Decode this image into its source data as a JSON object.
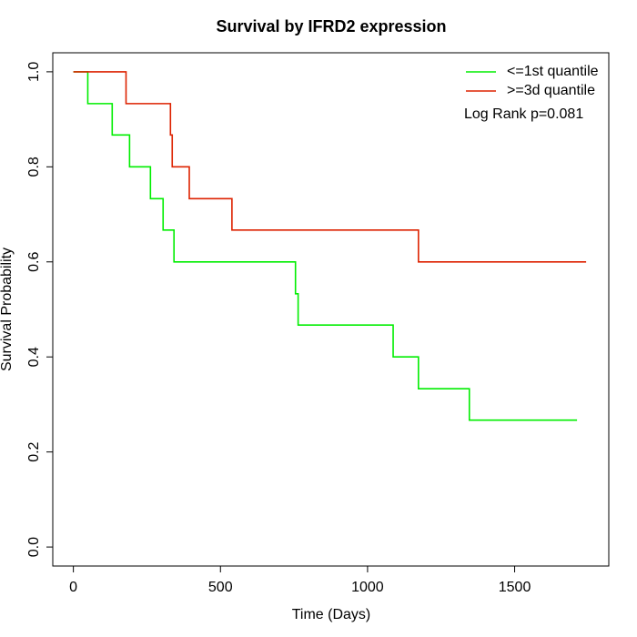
{
  "chart_data": {
    "type": "step",
    "title": "Survival by IFRD2 expression",
    "x_label": "Time (Days)",
    "y_label": "Survival Probability",
    "annotation": "Log Rank p=0.081",
    "xlim": [
      -70,
      1820
    ],
    "ylim": [
      -0.04,
      1.04
    ],
    "xticks": [
      0,
      500,
      1000,
      1500
    ],
    "yticks": [
      {
        "value": 0,
        "label": "0.0"
      },
      0.2,
      0.4,
      0.6,
      0.8,
      {
        "value": 1,
        "label": "1.0"
      }
    ],
    "legend": "top-right",
    "series": [
      {
        "name": "<=1st quantile",
        "color": "#00ee00",
        "x": [
          0,
          49,
          132,
          191,
          262,
          305,
          342,
          755,
          764,
          1087,
          1173,
          1346,
          1712
        ],
        "values": [
          1,
          0.933,
          0.867,
          0.8,
          0.733,
          0.667,
          0.6,
          0.533,
          0.467,
          0.4,
          0.333,
          0.267,
          0.267
        ]
      },
      {
        "name": ">=3d quantile",
        "color": "#dd2200",
        "x": [
          0,
          179,
          330,
          336,
          394,
          539,
          1173,
          1743
        ],
        "values": [
          1,
          0.933,
          0.867,
          0.8,
          0.733,
          0.667,
          0.6,
          0.6
        ]
      }
    ]
  }
}
